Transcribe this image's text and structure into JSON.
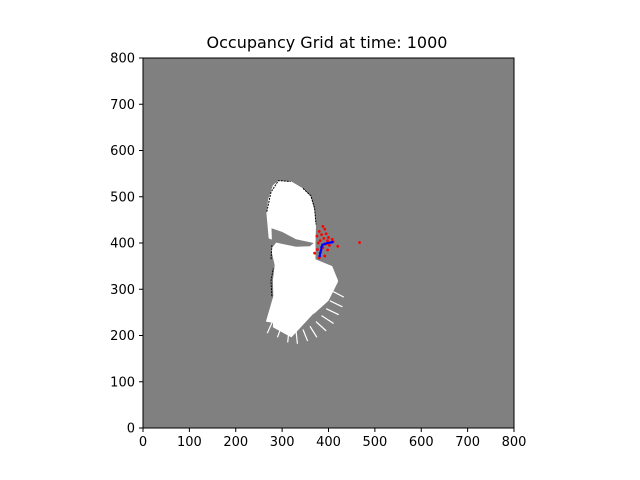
{
  "chart_data": {
    "type": "heatmap",
    "title": "Occupancy Grid at time: 1000",
    "xlabel": "",
    "ylabel": "",
    "xlim": [
      0,
      800
    ],
    "ylim": [
      0,
      800
    ],
    "x_ticks": [
      0,
      100,
      200,
      300,
      400,
      500,
      600,
      700,
      800
    ],
    "y_ticks": [
      0,
      100,
      200,
      300,
      400,
      500,
      600,
      700,
      800
    ],
    "grid": false,
    "legend": "none",
    "colors": {
      "unknown": "#808080",
      "free": "#ffffff",
      "occupied": "#000000",
      "particles": "#ff0000",
      "trajectory": "#0000ff"
    },
    "free_region_outline": [
      [
        292,
        535
      ],
      [
        320,
        533
      ],
      [
        345,
        518
      ],
      [
        362,
        500
      ],
      [
        370,
        470
      ],
      [
        373,
        440
      ],
      [
        372,
        400
      ],
      [
        372,
        365
      ],
      [
        410,
        333
      ],
      [
        420,
        315
      ],
      [
        400,
        275
      ],
      [
        370,
        248
      ],
      [
        345,
        236
      ],
      [
        300,
        224
      ],
      [
        265,
        230
      ],
      [
        281,
        285
      ],
      [
        280,
        320
      ],
      [
        284,
        352
      ],
      [
        276,
        387
      ],
      [
        289,
        403
      ],
      [
        271,
        410
      ],
      [
        266,
        465
      ],
      [
        270,
        495
      ],
      [
        280,
        525
      ]
    ],
    "free_region_fan": [
      [
        284,
        352
      ],
      [
        372,
        365
      ],
      [
        408,
        350
      ],
      [
        421,
        318
      ],
      [
        402,
        282
      ],
      [
        370,
        250
      ],
      [
        320,
        196
      ],
      [
        280,
        218
      ]
    ],
    "shadow_wedge": [
      [
        277,
        432
      ],
      [
        300,
        424
      ],
      [
        330,
        408
      ],
      [
        368,
        400
      ],
      [
        360,
        393
      ],
      [
        330,
        392
      ],
      [
        300,
        398
      ],
      [
        278,
        403
      ]
    ],
    "occupied_edges": [
      [
        [
          267,
          468
        ],
        [
          276,
          510
        ],
        [
          292,
          535
        ],
        [
          318,
          533
        ]
      ],
      [
        [
          345,
          518
        ],
        [
          362,
          502
        ],
        [
          370,
          475
        ],
        [
          373,
          440
        ]
      ],
      [
        [
          276,
          365
        ],
        [
          278,
          395
        ]
      ],
      [
        [
          278,
          285
        ],
        [
          276,
          318
        ],
        [
          281,
          345
        ]
      ]
    ],
    "fan_rays": [
      [
        [
          300,
          224
        ],
        [
          290,
          196
        ]
      ],
      [
        [
          315,
          214
        ],
        [
          312,
          185
        ]
      ],
      [
        [
          330,
          210
        ],
        [
          333,
          182
        ]
      ],
      [
        [
          345,
          213
        ],
        [
          355,
          188
        ]
      ],
      [
        [
          360,
          220
        ],
        [
          375,
          196
        ]
      ],
      [
        [
          373,
          230
        ],
        [
          395,
          210
        ]
      ],
      [
        [
          385,
          243
        ],
        [
          411,
          226
        ]
      ],
      [
        [
          395,
          258
        ],
        [
          422,
          245
        ]
      ],
      [
        [
          403,
          275
        ],
        [
          430,
          262
        ]
      ],
      [
        [
          410,
          295
        ],
        [
          433,
          283
        ]
      ],
      [
        [
          280,
          232
        ],
        [
          268,
          205
        ]
      ]
    ],
    "particles": [
      [
        388,
        436
      ],
      [
        392,
        430
      ],
      [
        380,
        425
      ],
      [
        395,
        420
      ],
      [
        385,
        418
      ],
      [
        375,
        415
      ],
      [
        400,
        412
      ],
      [
        390,
        410
      ],
      [
        382,
        405
      ],
      [
        398,
        405
      ],
      [
        408,
        408
      ],
      [
        378,
        400
      ],
      [
        395,
        398
      ],
      [
        402,
        395
      ],
      [
        420,
        393
      ],
      [
        388,
        390
      ],
      [
        376,
        386
      ],
      [
        398,
        385
      ],
      [
        383,
        380
      ],
      [
        370,
        378
      ],
      [
        392,
        372
      ],
      [
        380,
        368
      ],
      [
        467,
        401
      ],
      [
        410,
        403
      ]
    ],
    "trajectory": [
      [
        381,
        372
      ],
      [
        382,
        378
      ],
      [
        384,
        385
      ],
      [
        385,
        391
      ],
      [
        387,
        396
      ],
      [
        392,
        398
      ],
      [
        398,
        400
      ],
      [
        404,
        401
      ],
      [
        408,
        402
      ]
    ]
  }
}
